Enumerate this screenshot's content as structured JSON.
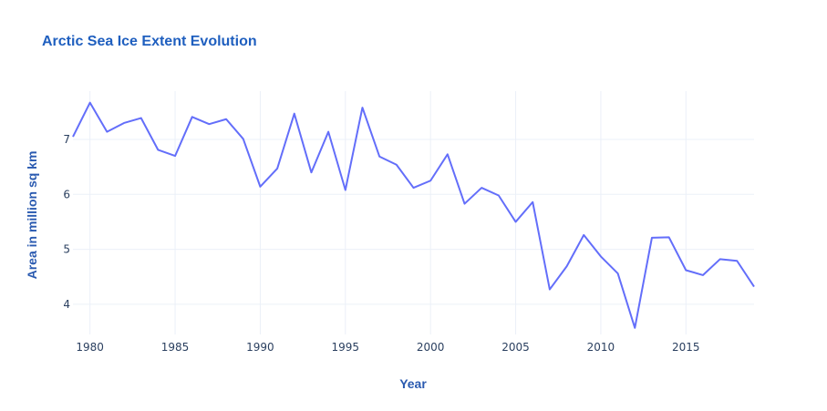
{
  "chart_data": {
    "type": "line",
    "title": "Arctic Sea Ice Extent Evolution",
    "xlabel": "Year",
    "ylabel": "Area in million sq km",
    "x": [
      1979,
      1980,
      1981,
      1982,
      1983,
      1984,
      1985,
      1986,
      1987,
      1988,
      1989,
      1990,
      1991,
      1992,
      1993,
      1994,
      1995,
      1996,
      1997,
      1998,
      1999,
      2000,
      2001,
      2002,
      2003,
      2004,
      2005,
      2006,
      2007,
      2008,
      2009,
      2010,
      2011,
      2012,
      2013,
      2014,
      2015,
      2016,
      2017,
      2018,
      2019
    ],
    "series": [
      {
        "values": [
          7.05,
          7.67,
          7.14,
          7.3,
          7.39,
          6.81,
          6.7,
          7.41,
          7.28,
          7.37,
          7.01,
          6.14,
          6.47,
          7.47,
          6.4,
          7.14,
          6.08,
          7.58,
          6.69,
          6.54,
          6.12,
          6.25,
          6.73,
          5.83,
          6.12,
          5.98,
          5.5,
          5.86,
          4.27,
          4.69,
          5.26,
          4.87,
          4.56,
          3.57,
          5.21,
          5.22,
          4.62,
          4.53,
          4.82,
          4.79,
          4.32
        ]
      }
    ],
    "xticks": [
      "1980",
      "1985",
      "1990",
      "1995",
      "2000",
      "2005",
      "2010",
      "2015"
    ],
    "xtick_values": [
      1980,
      1985,
      1990,
      1995,
      2000,
      2005,
      2010,
      2015
    ],
    "yticks": [
      "4",
      "5",
      "6",
      "7"
    ],
    "ytick_values": [
      4,
      5,
      6,
      7
    ],
    "xlim": [
      1979,
      2019
    ],
    "ylim": [
      3.45,
      7.88
    ],
    "grid": true,
    "colors": {
      "line": "#636efa",
      "title": "#1f5fbf",
      "axis_title": "#2a5ab0"
    }
  }
}
